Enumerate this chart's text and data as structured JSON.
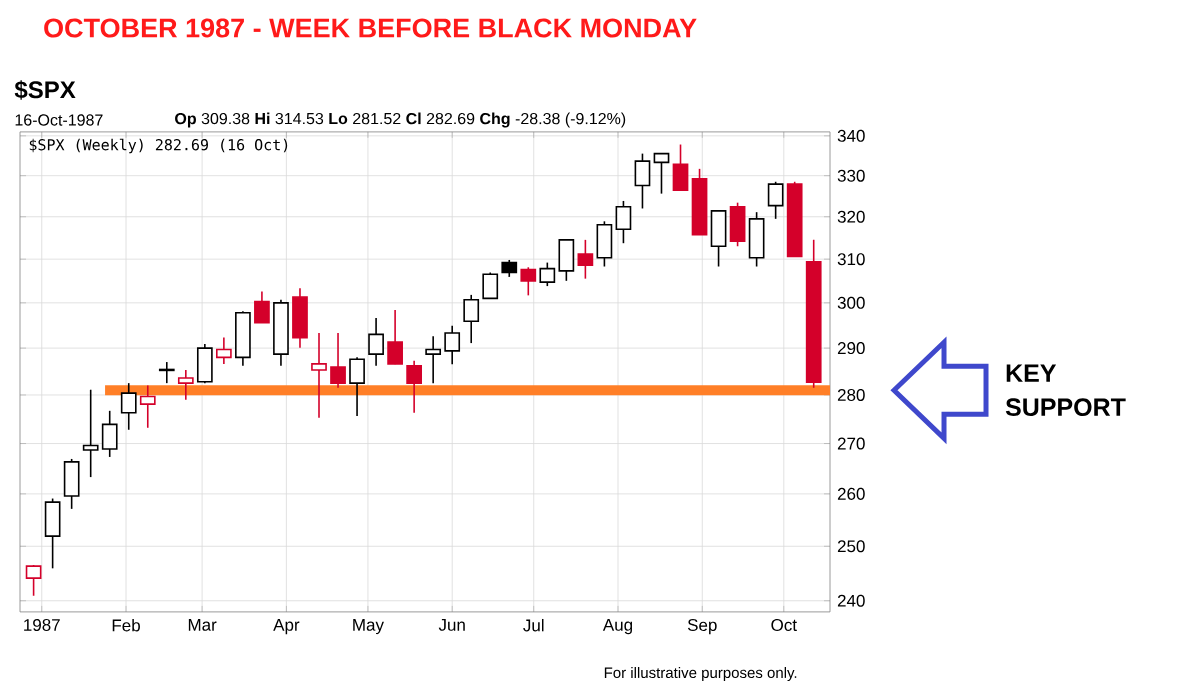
{
  "chart_data": {
    "type": "candlestick",
    "title": "OCTOBER 1987 - WEEK BEFORE BLACK MONDAY",
    "subtitle": "$SPX",
    "x": [
      "1986-12-29",
      "1987-01-05",
      "1987-01-12",
      "1987-01-19",
      "1987-01-26",
      "1987-02-02",
      "1987-02-09",
      "1987-02-16",
      "1987-02-23",
      "1987-03-02",
      "1987-03-09",
      "1987-03-16",
      "1987-03-23",
      "1987-03-30",
      "1987-04-06",
      "1987-04-13",
      "1987-04-20",
      "1987-04-27",
      "1987-05-04",
      "1987-05-11",
      "1987-05-18",
      "1987-05-25",
      "1987-06-01",
      "1987-06-08",
      "1987-06-15",
      "1987-06-22",
      "1987-06-29",
      "1987-07-06",
      "1987-07-13",
      "1987-07-20",
      "1987-07-27",
      "1987-08-03",
      "1987-08-10",
      "1987-08-17",
      "1987-08-24",
      "1987-08-31",
      "1987-09-07",
      "1987-09-14",
      "1987-09-21",
      "1987-09-28",
      "1987-10-05",
      "1987-10-12"
    ],
    "ohlc": [
      [
        244.1,
        246.5,
        240.9,
        246.3
      ],
      [
        251.9,
        259.1,
        245.9,
        258.4
      ],
      [
        259.6,
        266.9,
        257.1,
        266.3
      ],
      [
        268.7,
        281.1,
        263.3,
        269.6
      ],
      [
        268.9,
        276.7,
        267.3,
        273.9
      ],
      [
        276.3,
        282.5,
        272.8,
        280.4
      ],
      [
        278.1,
        282,
        273.2,
        279.7
      ],
      [
        285.2,
        287,
        282.5,
        285.4
      ],
      [
        282.5,
        285.3,
        279,
        283.6
      ],
      [
        282.8,
        290.9,
        282.5,
        290
      ],
      [
        288,
        292.3,
        286.6,
        289.7
      ],
      [
        288,
        298.1,
        286.2,
        297.8
      ],
      [
        300.3,
        302.6,
        295.6,
        295.6
      ],
      [
        288.7,
        300.7,
        286.2,
        300
      ],
      [
        301.3,
        303.3,
        290.1,
        292.3
      ],
      [
        285.3,
        293.3,
        275.3,
        286.6
      ],
      [
        285.9,
        293.3,
        281.5,
        282.5
      ],
      [
        282.5,
        288,
        275.6,
        287.6
      ],
      [
        288.7,
        296.6,
        286.2,
        293
      ],
      [
        291.3,
        298.4,
        286.5,
        286.6
      ],
      [
        286.2,
        287.3,
        276.3,
        282.5
      ],
      [
        288.7,
        292.6,
        282.5,
        289.7
      ],
      [
        289.4,
        294.9,
        286.5,
        293.3
      ],
      [
        295.9,
        301.8,
        291.1,
        300.7
      ],
      [
        301,
        306.9,
        301,
        306.5
      ],
      [
        309.2,
        309.8,
        305.9,
        306.9
      ],
      [
        307.6,
        308.1,
        301.7,
        305
      ],
      [
        304.7,
        309.2,
        303.8,
        307.8
      ],
      [
        307.3,
        314.5,
        305,
        314.5
      ],
      [
        311.2,
        314.5,
        305.5,
        308.6
      ],
      [
        310.3,
        318.9,
        308.3,
        318.1
      ],
      [
        317,
        323.8,
        313.7,
        322.4
      ],
      [
        327.6,
        335.5,
        322,
        333.6
      ],
      [
        333.3,
        335.5,
        325.6,
        335.5
      ],
      [
        332.8,
        337.8,
        326.4,
        326.4
      ],
      [
        329.2,
        331.7,
        315.7,
        315.7
      ],
      [
        313,
        321.4,
        308.3,
        321.4
      ],
      [
        322.4,
        323.4,
        313,
        314.2
      ],
      [
        310.3,
        321.1,
        308.3,
        319.5
      ],
      [
        322.7,
        328.5,
        319.5,
        327.9
      ],
      [
        327.9,
        328.5,
        310.6,
        310.6
      ],
      [
        309.38,
        314.53,
        281.52,
        282.69
      ]
    ],
    "colors": [
      "#d4002a",
      "#000000",
      "#000000",
      "#000000",
      "#000000",
      "#000000",
      "#d4002a",
      "#000000",
      "#d4002a",
      "#000000",
      "#d4002a",
      "#000000",
      "#d4002a",
      "#000000",
      "#d4002a",
      "#d4002a",
      "#d4002a",
      "#000000",
      "#000000",
      "#d4002a",
      "#d4002a",
      "#000000",
      "#000000",
      "#000000",
      "#000000",
      "#000000",
      "#d4002a",
      "#000000",
      "#000000",
      "#d4002a",
      "#000000",
      "#000000",
      "#000000",
      "#000000",
      "#d4002a",
      "#d4002a",
      "#000000",
      "#d4002a",
      "#000000",
      "#000000",
      "#d4002a",
      "#d4002a"
    ],
    "xlim": [
      "1986-12-24",
      "1987-10-18"
    ],
    "xticks": [
      {
        "value": "1987-01-01",
        "label": "1987"
      },
      {
        "value": "1987-02-01",
        "label": "Feb"
      },
      {
        "value": "1987-03-01",
        "label": "Mar"
      },
      {
        "value": "1987-04-01",
        "label": "Apr"
      },
      {
        "value": "1987-05-01",
        "label": "May"
      },
      {
        "value": "1987-06-01",
        "label": "Jun"
      },
      {
        "value": "1987-07-01",
        "label": "Jul"
      },
      {
        "value": "1987-08-01",
        "label": "Aug"
      },
      {
        "value": "1987-09-01",
        "label": "Sep"
      },
      {
        "value": "1987-10-01",
        "label": "Oct"
      }
    ],
    "ylim": [
      238,
      341
    ],
    "yticks": [
      240,
      250,
      260,
      270,
      280,
      290,
      300,
      310,
      320,
      330,
      340
    ],
    "log": true,
    "grid": true,
    "ref_lines": [
      {
        "axis": "y",
        "value": 281,
        "color": "#ff7f27"
      }
    ],
    "annotations": [
      "16-Oct-1987",
      "**Op** 309.38 **Hi** 314.53 **Lo** 281.52 **Cl** 282.69 **Chg** -28.38 (-9.12%)",
      "$SPX (Weekly) 282.69 (16 Oct)",
      "For illustrative purposes only.",
      "KEY SUPPORT"
    ]
  }
}
